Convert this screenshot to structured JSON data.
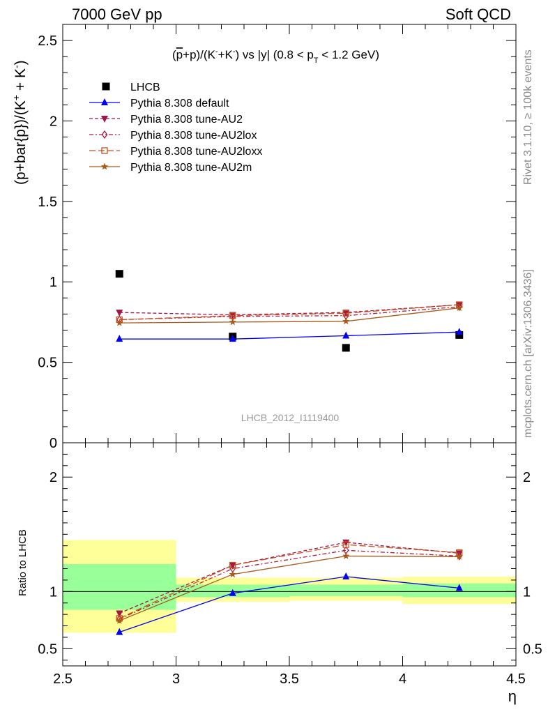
{
  "header": {
    "left": "7000 GeV pp",
    "right": "Soft QCD"
  },
  "side_labels": {
    "rivet": "Rivet 3.1.10, ≥ 100k events",
    "mcplots": "mcplots.cern.ch [arXiv:1306.3436]"
  },
  "chart_data": [
    {
      "type": "scatter",
      "panel": "main",
      "title_parts": {
        "t1": "(",
        "t2": "p",
        "t3": "+p)/(K",
        "t4": "-",
        "t5": "+K",
        "t6": "-",
        "t7": ") vs |y| (0.8 < p",
        "t8": "T",
        "t9": " < 1.2 GeV)"
      },
      "ylabel_parts": {
        "y1": "(p+bar{p})/(K",
        "y2": "+",
        "y3": " + K",
        "y4": "-",
        "y5": ")"
      },
      "watermark": "LHCB_2012_I1119400",
      "xlim": [
        2.5,
        4.5
      ],
      "ylim": [
        0,
        2.6
      ],
      "yticks": [
        {
          "value": 0,
          "label": "0"
        },
        {
          "value": 0.5,
          "label": "0.5"
        },
        {
          "value": 1,
          "label": "1"
        },
        {
          "value": 1.5,
          "label": "1.5"
        },
        {
          "value": 2,
          "label": "2"
        },
        {
          "value": 2.5,
          "label": "2.5"
        }
      ],
      "x": [
        2.75,
        3.25,
        3.75,
        4.25
      ],
      "series": [
        {
          "name": "LHCB",
          "style": "data",
          "color": "#000000",
          "marker": "square",
          "values": [
            1.05,
            0.66,
            0.59,
            0.67
          ]
        },
        {
          "name": "Pythia 8.308 default",
          "style": "solid",
          "color": "#0000ee",
          "marker": "triangle-up",
          "values": [
            0.645,
            0.645,
            0.665,
            0.688
          ],
          "errors": [
            0.008,
            0.01,
            0.012,
            0.02
          ]
        },
        {
          "name": "Pythia 8.308 tune-AU2",
          "style": "dash",
          "color": "#a0154a",
          "marker": "triangle-down",
          "values": [
            0.81,
            0.795,
            0.81,
            0.858
          ]
        },
        {
          "name": "Pythia 8.308 tune-AU2lox",
          "style": "dashdot",
          "color": "#b01c3e",
          "marker": "diamond-open",
          "values": [
            0.765,
            0.785,
            0.79,
            0.845
          ]
        },
        {
          "name": "Pythia 8.308 tune-AU2loxx",
          "style": "longdash",
          "color": "#c8501a",
          "marker": "square-open",
          "values": [
            0.765,
            0.79,
            0.805,
            0.858
          ]
        },
        {
          "name": "Pythia 8.308 tune-AU2m",
          "style": "solid",
          "color": "#a85a1a",
          "marker": "star",
          "values": [
            0.745,
            0.75,
            0.755,
            0.838
          ]
        }
      ]
    },
    {
      "type": "line",
      "panel": "ratio",
      "ylabel": "Ratio to LHCB",
      "xlabel": "η",
      "xlim": [
        2.5,
        4.5
      ],
      "ylim": [
        0.35,
        2.3
      ],
      "yticks": [
        {
          "value": 0.5,
          "label": "0.5"
        },
        {
          "value": 1,
          "label": "1"
        },
        {
          "value": 2,
          "label": "2"
        }
      ],
      "xticks": [
        {
          "value": 2.5,
          "label": "2.5"
        },
        {
          "value": 3,
          "label": "3"
        },
        {
          "value": 3.5,
          "label": "3.5"
        },
        {
          "value": 4,
          "label": "4"
        },
        {
          "value": 4.5,
          "label": "4.5"
        }
      ],
      "bands": [
        {
          "x0": 2.5,
          "x1": 3.0,
          "yellow": [
            0.64,
            1.45
          ],
          "green": [
            0.84,
            1.24
          ]
        },
        {
          "x0": 3.0,
          "x1": 3.5,
          "yellow": [
            0.91,
            1.12
          ],
          "green": [
            0.95,
            1.06
          ]
        },
        {
          "x0": 3.5,
          "x1": 4.0,
          "yellow": [
            0.92,
            1.12
          ],
          "green": [
            0.96,
            1.06
          ]
        },
        {
          "x0": 4.0,
          "x1": 4.5,
          "yellow": [
            0.89,
            1.13
          ],
          "green": [
            0.95,
            1.07
          ]
        }
      ],
      "x": [
        2.75,
        3.25,
        3.75,
        4.25
      ],
      "series": [
        {
          "name": "Pythia 8.308 default",
          "values": [
            0.645,
            0.985,
            1.13,
            1.03
          ]
        },
        {
          "name": "Pythia 8.308 tune-AU2",
          "values": [
            0.81,
            1.23,
            1.43,
            1.335
          ]
        },
        {
          "name": "Pythia 8.308 tune-AU2lox",
          "values": [
            0.76,
            1.2,
            1.36,
            1.31
          ]
        },
        {
          "name": "Pythia 8.308 tune-AU2loxx",
          "values": [
            0.765,
            1.23,
            1.41,
            1.34
          ]
        },
        {
          "name": "Pythia 8.308 tune-AU2m",
          "values": [
            0.745,
            1.15,
            1.31,
            1.305
          ]
        }
      ]
    }
  ]
}
